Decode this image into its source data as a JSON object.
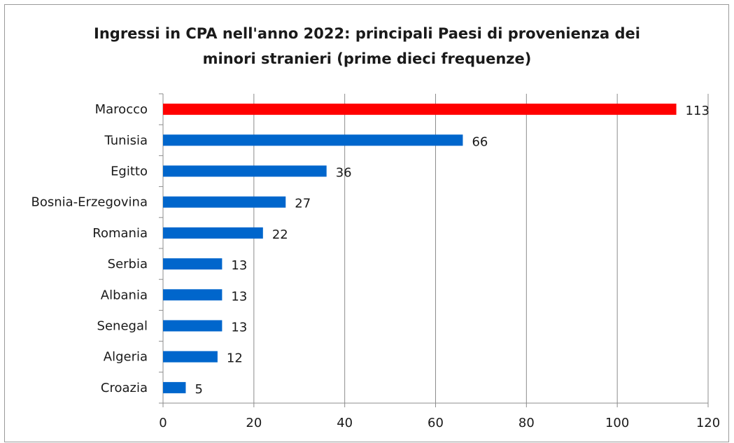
{
  "chart_data": {
    "type": "bar",
    "orientation": "horizontal",
    "title": [
      "Ingressi in CPA nell'anno 2022: principali Paesi di provenienza dei",
      "minori stranieri (prime dieci frequenze)"
    ],
    "categories": [
      "Marocco",
      "Tunisia",
      "Egitto",
      "Bosnia-Erzegovina",
      "Romania",
      "Serbia",
      "Albania",
      "Senegal",
      "Algeria",
      "Croazia"
    ],
    "values": [
      113,
      66,
      36,
      27,
      22,
      13,
      13,
      13,
      12,
      5
    ],
    "value_labels": [
      "113",
      "66",
      "36",
      "27",
      "22",
      "13",
      "13",
      "13",
      "12",
      "5"
    ],
    "xlim": [
      0,
      120
    ],
    "xticks": [
      0,
      20,
      40,
      60,
      80,
      100,
      120
    ],
    "xtick_labels": [
      "0",
      "20",
      "40",
      "60",
      "80",
      "100",
      "120"
    ],
    "grid": "vertical major gridlines",
    "legend": "none",
    "colors": {
      "highlight": "#ff0000",
      "default": "#0066cc",
      "grid": "#8c8c8c"
    }
  }
}
